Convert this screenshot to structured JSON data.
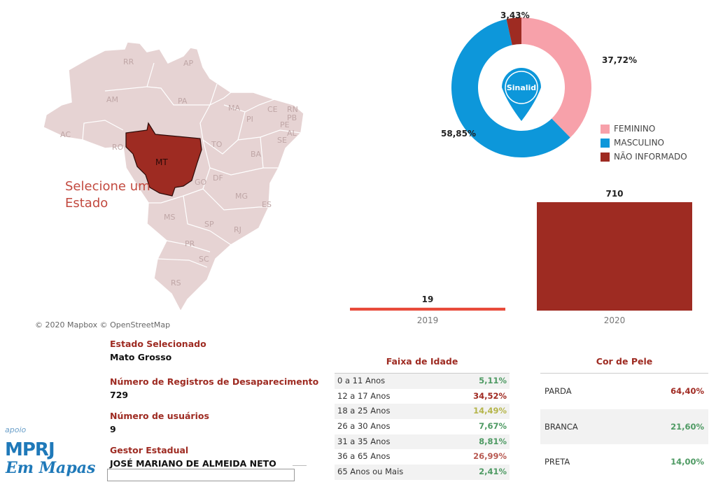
{
  "map": {
    "selected_state": "MT",
    "hint": "Selecione um Estado",
    "attribution": "© 2020 Mapbox © OpenStreetMap",
    "state_labels": [
      "RR",
      "AP",
      "AM",
      "PA",
      "MA",
      "CE",
      "RN",
      "PB",
      "PE",
      "AL",
      "SE",
      "PI",
      "AC",
      "RO",
      "TO",
      "BA",
      "GO",
      "DF",
      "MG",
      "ES",
      "MS",
      "SP",
      "RJ",
      "PR",
      "SC",
      "RS"
    ],
    "colors": {
      "land": "#e6d3d3",
      "selected": "#9e2b22",
      "border": "#ffffff"
    }
  },
  "gender_chart": {
    "segments": [
      {
        "label": "FEMININO",
        "pct_text": "37,72%",
        "value": 37.72,
        "color": "#f7a1aa"
      },
      {
        "label": "MASCULINO",
        "pct_text": "58,85%",
        "value": 58.85,
        "color": "#0d97da"
      },
      {
        "label": "NÃO INFORMADO",
        "pct_text": "3,43%",
        "value": 3.43,
        "color": "#9e2b22"
      }
    ],
    "center_logo": "Sinalid"
  },
  "chart_data": {
    "type": "bar",
    "categories": [
      "2019",
      "2020"
    ],
    "values": [
      19,
      710
    ],
    "colors": [
      "#e84a3a",
      "#9e2b22"
    ]
  },
  "info": {
    "estado_label": "Estado Selecionado",
    "estado_value": "Mato Grosso",
    "registros_label": "Número de Registros de Desaparecimento",
    "registros_value": "729",
    "usuarios_label": "Número de usuários",
    "usuarios_value": "9",
    "gestor_label": "Gestor Estadual",
    "gestor_value": "JOSÉ MARIANO DE ALMEIDA NETO"
  },
  "logo": {
    "apoio": "apoio",
    "mprj": "MPRJ",
    "em_mapas": "Em Mapas"
  },
  "age_table": {
    "title": "Faixa de Idade",
    "rows": [
      {
        "label": "0 a 11 Anos",
        "value": "5,11%",
        "color": "#4e9a63"
      },
      {
        "label": "12 a 17 Anos",
        "value": "34,52%",
        "color": "#a02a22"
      },
      {
        "label": "18 a 25 Anos",
        "value": "14,49%",
        "color": "#b5b54a"
      },
      {
        "label": "26 a 30 Anos",
        "value": "7,67%",
        "color": "#4e9a63"
      },
      {
        "label": "31 a 35 Anos",
        "value": "8,81%",
        "color": "#4e9a63"
      },
      {
        "label": "36 a 65 Anos",
        "value": "26,99%",
        "color": "#b85a52"
      },
      {
        "label": "65 Anos ou Mais",
        "value": "2,41%",
        "color": "#4e9a63"
      }
    ]
  },
  "skin_table": {
    "title": "Cor de Pele",
    "rows": [
      {
        "label": "PARDA",
        "value": "64,40%",
        "color": "#a02a22"
      },
      {
        "label": "BRANCA",
        "value": "21,60%",
        "color": "#4e9a63"
      },
      {
        "label": "PRETA",
        "value": "14,00%",
        "color": "#4e9a63"
      }
    ]
  }
}
